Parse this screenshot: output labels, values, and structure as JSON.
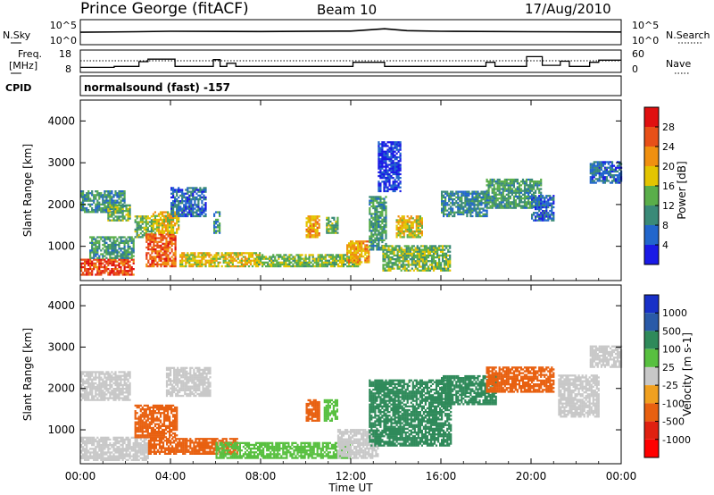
{
  "header": {
    "station": "Prince George (fitACF)",
    "beam": "Beam 10",
    "date": "17/Aug/2010"
  },
  "noise_panel": {
    "left_label": "N.Sky",
    "right_label": "N.Search",
    "left_ticks": [
      "10^5",
      "10^0"
    ],
    "right_ticks": [
      "10^5",
      "10^0"
    ]
  },
  "freq_panel": {
    "left_label_line1": "Freq.",
    "left_label_line2": "[MHz]",
    "right_label": "Nave",
    "left_ticks": [
      "18",
      "8"
    ],
    "right_ticks": [
      "60",
      "0"
    ]
  },
  "cpid": {
    "label": "CPID",
    "value": "normalsound (fast) -157"
  },
  "time_axis": {
    "label": "Time UT",
    "ticks": [
      "00:00",
      "04:00",
      "08:00",
      "12:00",
      "16:00",
      "20:00",
      "00:00"
    ]
  },
  "power_panel": {
    "ylabel": "Slant Range [km]",
    "yticks": [
      "1000",
      "2000",
      "3000",
      "4000"
    ],
    "colorbar_label": "Power [dB]",
    "colorbar_ticks": [
      "4",
      "8",
      "12",
      "16",
      "20",
      "24",
      "28"
    ],
    "colors": [
      "#1a1ae6",
      "#2266cc",
      "#3a8a78",
      "#5aae4a",
      "#e3c400",
      "#f09010",
      "#e85018",
      "#e01010"
    ]
  },
  "velocity_panel": {
    "ylabel": "Slant Range [km]",
    "yticks": [
      "1000",
      "2000",
      "3000",
      "4000"
    ],
    "colorbar_label": "Velocity [m s-1]",
    "colorbar_ticks": [
      "1000",
      "500",
      "100",
      "25",
      "-25",
      "-100",
      "-500",
      "-1000"
    ],
    "colors": [
      "#1830c8",
      "#2a5aa8",
      "#2f8a5a",
      "#58c040",
      "#c8c8c8",
      "#f0a020",
      "#e86010",
      "#e02010",
      "#ff0000"
    ]
  },
  "chart_data": [
    {
      "type": "line",
      "title": "Prince George (fitACF)",
      "xlabel": "",
      "ylabel": "N.Sky",
      "x_unit": "hours UT",
      "xlim": [
        0,
        24
      ],
      "series": [
        {
          "name": "N.Sky",
          "x": [
            0,
            2.5,
            4,
            8,
            12,
            13.5,
            14.5,
            16,
            20,
            24
          ],
          "values": [
            300,
            400,
            500,
            450,
            550,
            2000,
            700,
            500,
            400,
            350
          ]
        }
      ]
    },
    {
      "type": "line",
      "xlabel": "",
      "ylabel": "Freq. [MHz]",
      "xlim": [
        0,
        24
      ],
      "ylim": [
        8,
        18
      ],
      "series": [
        {
          "name": "Freq.",
          "x": [
            0,
            1.5,
            2.6,
            3.0,
            3.9,
            4.2,
            5.9,
            6.2,
            6.5,
            6.9,
            11.8,
            12.1,
            13.0,
            13.5,
            18.0,
            18.4,
            19.8,
            20.5,
            21.3,
            21.7,
            22.6,
            23.0,
            24.0
          ],
          "values": [
            10,
            10.5,
            12.8,
            14.0,
            14.0,
            10.5,
            13.8,
            10.5,
            12.0,
            10.5,
            10.5,
            12.5,
            12.5,
            10.5,
            12.5,
            10.5,
            15.2,
            11.0,
            13.0,
            10.5,
            12.5,
            13.5,
            13.5
          ]
        }
      ]
    },
    {
      "type": "heatmap",
      "title": "normalsound (fast) -157",
      "xlabel": "Time UT",
      "ylabel": "Slant Range [km]",
      "colorbar": "Power [dB]",
      "xlim": [
        0,
        24
      ],
      "ylim": [
        180,
        4500
      ],
      "x_unit": "hours UT",
      "clim": [
        2,
        30
      ],
      "patches": [
        {
          "t0": 0.0,
          "t1": 2.4,
          "r0": 300,
          "r1": 700,
          "v": 26
        },
        {
          "t0": 0.0,
          "t1": 2.0,
          "r0": 1800,
          "r1": 2300,
          "v": 11
        },
        {
          "t0": 0.4,
          "t1": 2.4,
          "r0": 700,
          "r1": 1200,
          "v": 12
        },
        {
          "t0": 1.2,
          "t1": 2.2,
          "r0": 1600,
          "r1": 2000,
          "v": 14
        },
        {
          "t0": 2.4,
          "t1": 3.2,
          "r0": 1200,
          "r1": 1700,
          "v": 14
        },
        {
          "t0": 2.9,
          "t1": 4.2,
          "r0": 500,
          "r1": 1300,
          "v": 24
        },
        {
          "t0": 3.2,
          "t1": 4.4,
          "r0": 1300,
          "r1": 1800,
          "v": 18
        },
        {
          "t0": 4.0,
          "t1": 5.6,
          "r0": 1700,
          "r1": 2400,
          "v": 8
        },
        {
          "t0": 4.4,
          "t1": 8.0,
          "r0": 500,
          "r1": 850,
          "v": 18
        },
        {
          "t0": 7.8,
          "t1": 12.4,
          "r0": 500,
          "r1": 800,
          "v": 15
        },
        {
          "t0": 5.9,
          "t1": 6.2,
          "r0": 1300,
          "r1": 1800,
          "v": 10
        },
        {
          "t0": 10.0,
          "t1": 10.6,
          "r0": 1200,
          "r1": 1700,
          "v": 20
        },
        {
          "t0": 10.9,
          "t1": 11.4,
          "r0": 1300,
          "r1": 1700,
          "v": 14
        },
        {
          "t0": 11.8,
          "t1": 12.8,
          "r0": 600,
          "r1": 1100,
          "v": 20
        },
        {
          "t0": 12.8,
          "t1": 13.6,
          "r0": 900,
          "r1": 2200,
          "v": 12
        },
        {
          "t0": 13.4,
          "t1": 16.4,
          "r0": 400,
          "r1": 1000,
          "v": 14
        },
        {
          "t0": 14.0,
          "t1": 15.2,
          "r0": 1200,
          "r1": 1700,
          "v": 18
        },
        {
          "t0": 16.0,
          "t1": 18.0,
          "r0": 1700,
          "r1": 2300,
          "v": 10
        },
        {
          "t0": 18.0,
          "t1": 20.4,
          "r0": 1900,
          "r1": 2600,
          "v": 12
        },
        {
          "t0": 20.0,
          "t1": 21.0,
          "r0": 1600,
          "r1": 2200,
          "v": 8
        },
        {
          "t0": 22.6,
          "t1": 24.0,
          "r0": 2500,
          "r1": 3000,
          "v": 8
        },
        {
          "t0": 13.2,
          "t1": 14.2,
          "r0": 2300,
          "r1": 3500,
          "v": 5
        }
      ]
    },
    {
      "type": "heatmap",
      "xlabel": "Time UT",
      "ylabel": "Slant Range [km]",
      "colorbar": "Velocity [m s-1]",
      "xlim": [
        0,
        24
      ],
      "ylim": [
        180,
        4500
      ],
      "x_unit": "hours UT",
      "patches": [
        {
          "t0": 0.0,
          "t1": 3.0,
          "r0": 250,
          "r1": 800,
          "v": 0
        },
        {
          "t0": 0.0,
          "t1": 2.2,
          "r0": 1700,
          "r1": 2400,
          "v": 0
        },
        {
          "t0": 2.4,
          "t1": 4.3,
          "r0": 800,
          "r1": 1600,
          "v": -300
        },
        {
          "t0": 3.0,
          "t1": 7.0,
          "r0": 400,
          "r1": 800,
          "v": -150
        },
        {
          "t0": 3.8,
          "t1": 5.8,
          "r0": 1800,
          "r1": 2500,
          "v": 0
        },
        {
          "t0": 6.0,
          "t1": 12.0,
          "r0": 300,
          "r1": 700,
          "v": 60
        },
        {
          "t0": 10.0,
          "t1": 10.6,
          "r0": 1200,
          "r1": 1700,
          "v": -300
        },
        {
          "t0": 10.8,
          "t1": 11.4,
          "r0": 1200,
          "r1": 1700,
          "v": 60
        },
        {
          "t0": 11.4,
          "t1": 13.2,
          "r0": 300,
          "r1": 1000,
          "v": 0
        },
        {
          "t0": 12.8,
          "t1": 16.4,
          "r0": 600,
          "r1": 2200,
          "v": 200
        },
        {
          "t0": 16.0,
          "t1": 18.4,
          "r0": 1600,
          "r1": 2300,
          "v": 200
        },
        {
          "t0": 18.0,
          "t1": 21.0,
          "r0": 1900,
          "r1": 2500,
          "v": -300
        },
        {
          "t0": 21.2,
          "t1": 23.0,
          "r0": 1300,
          "r1": 2300,
          "v": 0
        },
        {
          "t0": 22.6,
          "t1": 24.0,
          "r0": 2500,
          "r1": 3000,
          "v": 0
        }
      ]
    }
  ]
}
